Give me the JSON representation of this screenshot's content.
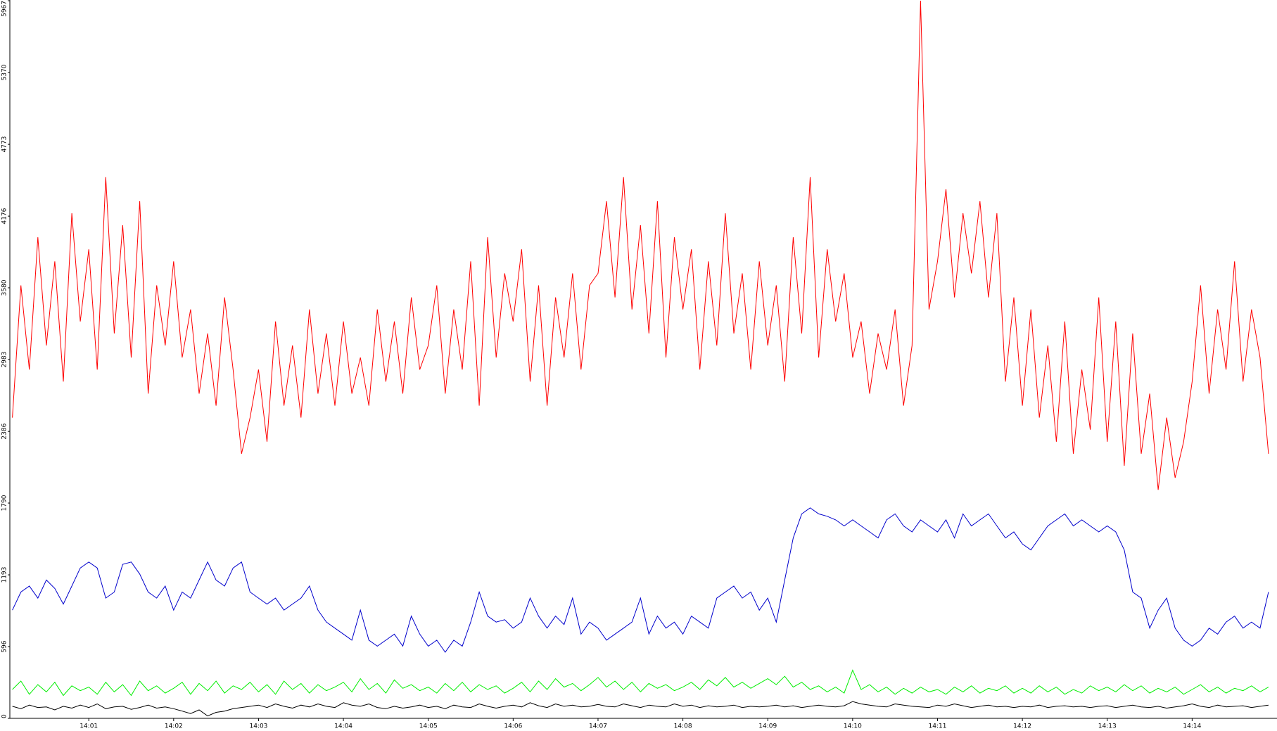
{
  "chart_data": {
    "type": "line",
    "x": [
      0.1,
      0.2,
      0.3,
      0.4,
      0.5,
      0.6,
      0.7,
      0.8,
      0.9,
      1.0,
      1.1,
      1.2,
      1.3,
      1.4,
      1.5,
      1.6,
      1.7,
      1.8,
      1.9,
      2.0,
      2.1,
      2.2,
      2.3,
      2.4,
      2.5,
      2.6,
      2.7,
      2.8,
      2.9,
      3.0,
      3.1,
      3.2,
      3.3,
      3.4,
      3.5,
      3.6,
      3.7,
      3.8,
      3.9,
      4.0,
      4.1,
      4.2,
      4.3,
      4.4,
      4.5,
      4.6,
      4.7,
      4.8,
      4.9,
      5.0,
      5.1,
      5.2,
      5.3,
      5.4,
      5.5,
      5.6,
      5.7,
      5.8,
      5.9,
      6.0,
      6.1,
      6.2,
      6.3,
      6.4,
      6.5,
      6.6,
      6.7,
      6.8,
      6.9,
      7.0,
      7.1,
      7.2,
      7.3,
      7.4,
      7.5,
      7.6,
      7.7,
      7.8,
      7.9,
      8.0,
      8.1,
      8.2,
      8.3,
      8.4,
      8.5,
      8.6,
      8.7,
      8.8,
      8.9,
      9.0,
      9.1,
      9.2,
      9.3,
      9.4,
      9.5,
      9.6,
      9.7,
      9.8,
      9.9,
      10.0,
      10.1,
      10.2,
      10.3,
      10.4,
      10.5,
      10.6,
      10.7,
      10.8,
      10.9,
      11.0,
      11.1,
      11.2,
      11.3,
      11.4,
      11.5,
      11.6,
      11.7,
      11.8,
      11.9,
      12.0,
      12.1,
      12.2,
      12.3,
      12.4,
      12.5,
      12.6,
      12.7,
      12.8,
      12.9,
      13.0,
      13.1,
      13.2,
      13.3,
      13.4,
      13.5,
      13.6,
      13.7,
      13.8,
      13.9,
      14.0,
      14.1,
      14.2,
      14.3,
      14.4,
      14.5,
      14.6,
      14.7,
      14.8,
      14.9
    ],
    "series": [
      {
        "color": "#ff0000",
        "values": [
          2500,
          3600,
          2900,
          4000,
          3100,
          3800,
          2800,
          4200,
          3300,
          3900,
          2900,
          4500,
          3200,
          4100,
          3000,
          4300,
          2700,
          3600,
          3100,
          3800,
          3000,
          3400,
          2700,
          3200,
          2600,
          3500,
          2900,
          2200,
          2500,
          2900,
          2300,
          3300,
          2600,
          3100,
          2500,
          3400,
          2700,
          3200,
          2600,
          3300,
          2700,
          3000,
          2600,
          3400,
          2800,
          3300,
          2700,
          3500,
          2900,
          3100,
          3600,
          2700,
          3400,
          2900,
          3800,
          2600,
          4000,
          3000,
          3700,
          3300,
          3900,
          2800,
          3600,
          2600,
          3500,
          3000,
          3700,
          2900,
          3600,
          3700,
          4300,
          3500,
          4500,
          3400,
          4100,
          3200,
          4300,
          3000,
          4000,
          3400,
          3900,
          2900,
          3800,
          3100,
          4200,
          3200,
          3700,
          2900,
          3800,
          3100,
          3600,
          2800,
          4000,
          3200,
          4500,
          3000,
          3900,
          3300,
          3700,
          3000,
          3300,
          2700,
          3200,
          2900,
          3400,
          2600,
          3100,
          5967,
          3400,
          3800,
          4400,
          3500,
          4200,
          3700,
          4300,
          3500,
          4200,
          2800,
          3500,
          2600,
          3400,
          2500,
          3100,
          2300,
          3300,
          2200,
          2900,
          2400,
          3500,
          2300,
          3300,
          2100,
          3200,
          2200,
          2700,
          1900,
          2500,
          2000,
          2300,
          2800,
          3600,
          2700,
          3400,
          2900,
          3800,
          2800,
          3400,
          3000,
          2200
        ]
      },
      {
        "color": "#0000cc",
        "values": [
          900,
          1050,
          1100,
          1000,
          1150,
          1080,
          950,
          1100,
          1250,
          1300,
          1250,
          1000,
          1050,
          1280,
          1300,
          1200,
          1050,
          1000,
          1100,
          900,
          1050,
          1000,
          1150,
          1300,
          1150,
          1100,
          1250,
          1300,
          1050,
          1000,
          950,
          1000,
          900,
          950,
          1000,
          1100,
          900,
          800,
          750,
          700,
          650,
          900,
          650,
          600,
          650,
          700,
          600,
          850,
          700,
          600,
          650,
          550,
          650,
          600,
          800,
          1050,
          850,
          800,
          820,
          750,
          800,
          1000,
          850,
          750,
          850,
          780,
          1000,
          700,
          800,
          750,
          650,
          700,
          750,
          800,
          1000,
          700,
          850,
          750,
          800,
          700,
          850,
          800,
          750,
          1000,
          1050,
          1100,
          1000,
          1050,
          900,
          1000,
          800,
          1150,
          1500,
          1700,
          1750,
          1700,
          1680,
          1650,
          1600,
          1650,
          1600,
          1550,
          1500,
          1650,
          1700,
          1600,
          1550,
          1650,
          1600,
          1550,
          1650,
          1500,
          1700,
          1600,
          1650,
          1700,
          1600,
          1500,
          1550,
          1450,
          1400,
          1500,
          1600,
          1650,
          1700,
          1600,
          1650,
          1600,
          1550,
          1600,
          1550,
          1400,
          1050,
          1000,
          750,
          900,
          1000,
          750,
          650,
          600,
          650,
          750,
          700,
          800,
          850,
          750,
          800,
          750,
          1050
        ]
      },
      {
        "color": "#00ee00",
        "values": [
          240,
          310,
          200,
          280,
          220,
          300,
          190,
          270,
          230,
          260,
          200,
          300,
          220,
          280,
          190,
          310,
          230,
          270,
          210,
          250,
          300,
          200,
          290,
          230,
          310,
          210,
          270,
          240,
          300,
          220,
          280,
          200,
          310,
          240,
          290,
          210,
          280,
          230,
          260,
          300,
          220,
          330,
          240,
          290,
          210,
          320,
          250,
          280,
          230,
          260,
          210,
          290,
          230,
          300,
          220,
          280,
          240,
          270,
          210,
          250,
          300,
          220,
          310,
          240,
          330,
          260,
          290,
          230,
          280,
          340,
          260,
          310,
          240,
          300,
          220,
          290,
          250,
          280,
          230,
          260,
          300,
          240,
          320,
          270,
          340,
          260,
          300,
          250,
          290,
          330,
          280,
          350,
          260,
          300,
          240,
          270,
          220,
          260,
          210,
          400,
          240,
          280,
          220,
          260,
          200,
          250,
          210,
          260,
          220,
          240,
          200,
          260,
          220,
          270,
          210,
          250,
          230,
          270,
          210,
          250,
          210,
          270,
          220,
          260,
          200,
          240,
          210,
          270,
          230,
          260,
          220,
          280,
          230,
          270,
          210,
          250,
          220,
          260,
          200,
          240,
          280,
          220,
          260,
          210,
          250,
          230,
          270,
          220,
          260
        ]
      },
      {
        "color": "#000000",
        "values": [
          100,
          80,
          110,
          90,
          95,
          70,
          100,
          85,
          110,
          90,
          120,
          80,
          95,
          100,
          75,
          90,
          110,
          85,
          95,
          80,
          60,
          40,
          70,
          20,
          50,
          60,
          80,
          90,
          100,
          110,
          90,
          120,
          100,
          85,
          110,
          95,
          120,
          100,
          90,
          130,
          110,
          100,
          120,
          90,
          80,
          100,
          85,
          95,
          110,
          90,
          100,
          80,
          110,
          95,
          90,
          120,
          100,
          85,
          100,
          110,
          95,
          130,
          105,
          90,
          120,
          100,
          110,
          95,
          100,
          115,
          100,
          95,
          120,
          105,
          90,
          110,
          100,
          95,
          120,
          100,
          110,
          90,
          105,
          95,
          100,
          110,
          90,
          100,
          95,
          100,
          110,
          95,
          105,
          90,
          100,
          110,
          100,
          95,
          105,
          140,
          120,
          110,
          100,
          95,
          120,
          110,
          100,
          95,
          90,
          110,
          100,
          120,
          105,
          90,
          100,
          110,
          95,
          100,
          90,
          100,
          95,
          110,
          90,
          100,
          105,
          95,
          100,
          90,
          100,
          105,
          90,
          100,
          110,
          95,
          90,
          100,
          85,
          95,
          105,
          120,
          100,
          90,
          110,
          95,
          100,
          105,
          90,
          100,
          110
        ]
      }
    ],
    "xlim": [
      0.07,
      15.0
    ],
    "xticks": [
      {
        "value": 1,
        "label": "14:01"
      },
      {
        "value": 2,
        "label": "14:02"
      },
      {
        "value": 3,
        "label": "14:03"
      },
      {
        "value": 4,
        "label": "14:04"
      },
      {
        "value": 5,
        "label": "14:05"
      },
      {
        "value": 6,
        "label": "14:06"
      },
      {
        "value": 7,
        "label": "14:07"
      },
      {
        "value": 8,
        "label": "14:08"
      },
      {
        "value": 9,
        "label": "14:09"
      },
      {
        "value": 10,
        "label": "14:10"
      },
      {
        "value": 11,
        "label": "14:11"
      },
      {
        "value": 12,
        "label": "14:12"
      },
      {
        "value": 13,
        "label": "14:13"
      },
      {
        "value": 14,
        "label": "14:14"
      }
    ],
    "ylim": [
      0,
      5967
    ],
    "yticks": [
      0,
      596,
      1193,
      1790,
      2386,
      2983,
      3580,
      4176,
      4773,
      5370,
      5967
    ],
    "grid": false
  }
}
